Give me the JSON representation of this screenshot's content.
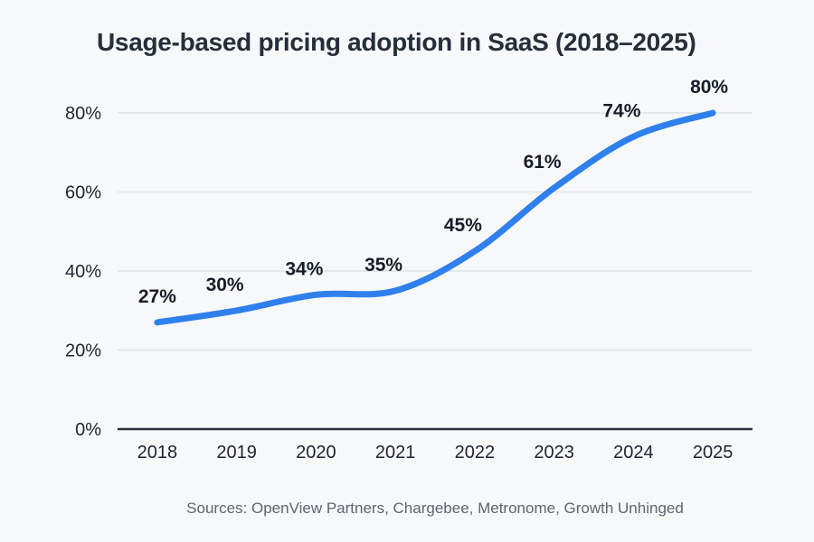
{
  "title": "Usage-based pricing adoption in SaaS (2018–2025)",
  "source_note": "Sources: OpenView Partners, Chargebee, Metronome, Growth Unhinged",
  "chart_data": {
    "type": "line",
    "title": "Usage-based pricing adoption in SaaS (2018–2025)",
    "categories": [
      "2018",
      "2019",
      "2020",
      "2021",
      "2022",
      "2023",
      "2024",
      "2025"
    ],
    "series": [
      {
        "name": "Usage-based pricing adoption",
        "values": [
          27,
          30,
          34,
          35,
          45,
          61,
          74,
          80
        ]
      }
    ],
    "data_labels": [
      "27%",
      "30%",
      "34%",
      "35%",
      "45%",
      "61%",
      "74%",
      "80%"
    ],
    "unit": "%",
    "xlabel": "",
    "ylabel": "",
    "ylim": [
      0,
      80
    ],
    "yticks": [
      0,
      20,
      40,
      60,
      80
    ],
    "ytick_labels": [
      "0%",
      "20%",
      "40%",
      "60%",
      "80%"
    ],
    "grid": "horizontal",
    "legend": "none",
    "colors": {
      "background": "#f7f8fa",
      "line": "#2f80ed",
      "gridline": "#e4e7eb",
      "axis": "#2b3340",
      "title_text": "#262e3a",
      "tick_text": "#1d2530",
      "data_label_text": "#161d29",
      "source_text": "#5d6570"
    }
  }
}
